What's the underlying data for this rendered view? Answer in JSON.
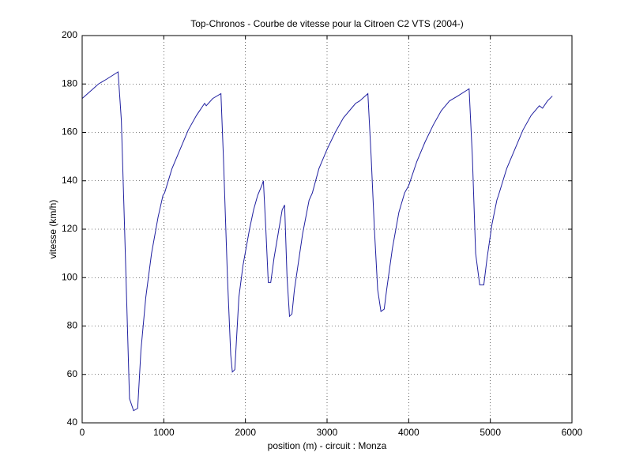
{
  "chart_data": {
    "type": "line",
    "title": "Top-Chronos - Courbe de vitesse pour la Citroen C2 VTS (2004-)",
    "x_label": "position (m) - circuit : Monza",
    "y_label": "vitesse (km/h)",
    "xlim": [
      0,
      6000
    ],
    "xticks": [
      0,
      1000,
      2000,
      3000,
      4000,
      5000,
      6000
    ],
    "ylim": [
      40,
      200
    ],
    "yticks": [
      40,
      60,
      80,
      100,
      120,
      140,
      160,
      180,
      200
    ],
    "grid": true,
    "series": [
      {
        "name": "vitesse",
        "color": "#2020a0",
        "x": [
          0,
          100,
          200,
          300,
          440,
          480,
          520,
          580,
          630,
          680,
          720,
          780,
          850,
          930,
          990,
          1010,
          1100,
          1200,
          1300,
          1400,
          1500,
          1520,
          1600,
          1700,
          1730,
          1780,
          1820,
          1840,
          1870,
          1920,
          1970,
          2050,
          2100,
          2150,
          2200,
          2220,
          2250,
          2280,
          2310,
          2350,
          2400,
          2450,
          2480,
          2510,
          2540,
          2570,
          2600,
          2700,
          2780,
          2820,
          2900,
          3000,
          3100,
          3200,
          3300,
          3350,
          3400,
          3500,
          3540,
          3580,
          3620,
          3660,
          3700,
          3730,
          3800,
          3880,
          3950,
          4000,
          4100,
          4200,
          4300,
          4400,
          4450,
          4500,
          4600,
          4740,
          4780,
          4820,
          4870,
          4920,
          4960,
          5020,
          5080,
          5100,
          5200,
          5300,
          5400,
          5500,
          5600,
          5640,
          5700,
          5760
        ],
        "values": [
          174,
          177,
          180,
          182,
          185,
          165,
          120,
          50,
          45,
          46,
          70,
          92,
          110,
          125,
          134,
          135,
          145,
          153,
          161,
          167,
          172,
          171,
          174,
          176,
          150,
          100,
          68,
          61,
          62,
          92,
          105,
          120,
          128,
          134,
          138,
          140,
          120,
          98,
          98,
          108,
          118,
          128,
          130,
          100,
          84,
          85,
          95,
          118,
          132,
          135,
          145,
          153,
          160,
          166,
          170,
          172,
          173,
          176,
          150,
          120,
          95,
          86,
          87,
          95,
          112,
          127,
          135,
          138,
          148,
          156,
          163,
          169,
          171,
          173,
          175,
          178,
          150,
          110,
          97,
          97,
          108,
          122,
          132,
          134,
          145,
          153,
          161,
          167,
          171,
          170,
          173,
          175
        ]
      }
    ]
  }
}
